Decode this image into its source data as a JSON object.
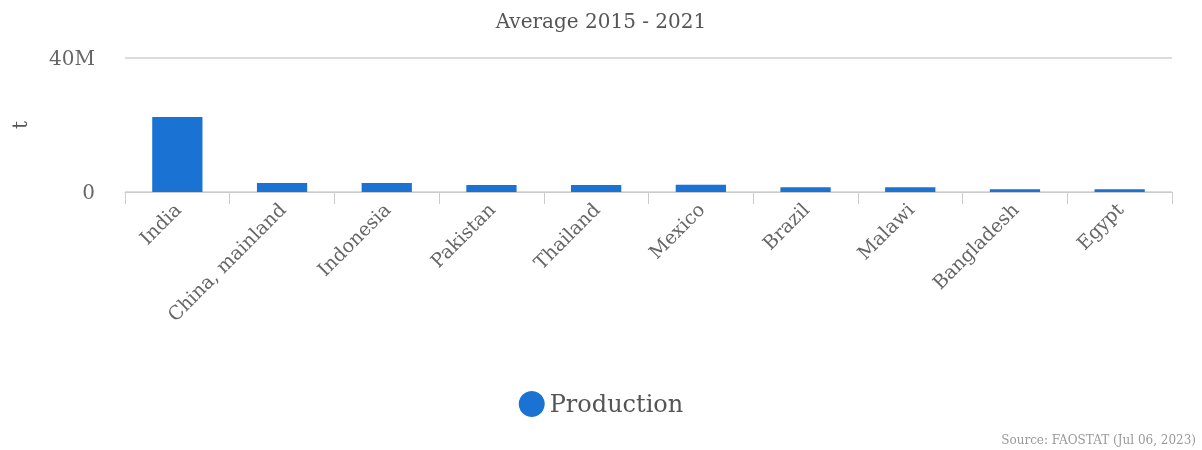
{
  "chart_data": {
    "type": "bar",
    "title": "Average 2015 - 2021",
    "ylabel": "t",
    "categories": [
      "India",
      "China, mainland",
      "Indonesia",
      "Pakistan",
      "Thailand",
      "Mexico",
      "Brazil",
      "Malawi",
      "Bangladesh",
      "Egypt"
    ],
    "series": [
      {
        "name": "Production",
        "color": "#1a72d2",
        "values": [
          22400000,
          2700000,
          2700000,
          2100000,
          2100000,
          2200000,
          1400000,
          1400000,
          800000,
          800000
        ]
      }
    ],
    "ylim": [
      0,
      40000000
    ],
    "yticks": [
      0,
      {
        "value": 40000000,
        "label": "40M"
      }
    ],
    "grid": "y",
    "legend": "bottom",
    "annotations": [
      "Source: FAOSTAT (Jul 06, 2023)"
    ]
  }
}
